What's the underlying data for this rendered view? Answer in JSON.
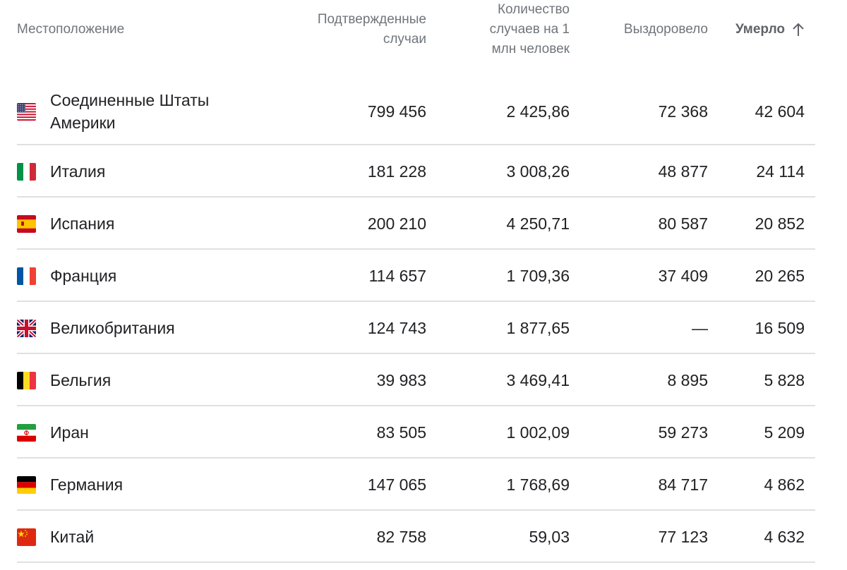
{
  "header": {
    "location": "Местоположение",
    "confirmed": [
      "Подтвержденные",
      "случаи"
    ],
    "per_million": [
      "Количество",
      "случаев на 1",
      "млн человек"
    ],
    "recovered": "Выздоровело",
    "deaths": "Умерло",
    "deaths_sort_icon": "arrow-up-icon"
  },
  "rows": [
    {
      "country": [
        "Соединенные Штаты",
        "Америки"
      ],
      "flag": "flag-usa-icon",
      "confirmed": "799 456",
      "per_million": "2 425,86",
      "recovered": "72 368",
      "deaths": "42 604"
    },
    {
      "country": [
        "Италия"
      ],
      "flag": "flag-italy-icon",
      "confirmed": "181 228",
      "per_million": "3 008,26",
      "recovered": "48 877",
      "deaths": "24 114"
    },
    {
      "country": [
        "Испания"
      ],
      "flag": "flag-spain-icon",
      "confirmed": "200 210",
      "per_million": "4 250,71",
      "recovered": "80 587",
      "deaths": "20 852"
    },
    {
      "country": [
        "Франция"
      ],
      "flag": "flag-france-icon",
      "confirmed": "114 657",
      "per_million": "1 709,36",
      "recovered": "37 409",
      "deaths": "20 265"
    },
    {
      "country": [
        "Великобритания"
      ],
      "flag": "flag-uk-icon",
      "confirmed": "124 743",
      "per_million": "1 877,65",
      "recovered": "—",
      "deaths": "16 509"
    },
    {
      "country": [
        "Бельгия"
      ],
      "flag": "flag-belgium-icon",
      "confirmed": "39 983",
      "per_million": "3 469,41",
      "recovered": "8 895",
      "deaths": "5 828"
    },
    {
      "country": [
        "Иран"
      ],
      "flag": "flag-iran-icon",
      "confirmed": "83 505",
      "per_million": "1 002,09",
      "recovered": "59 273",
      "deaths": "5 209"
    },
    {
      "country": [
        "Германия"
      ],
      "flag": "flag-germany-icon",
      "confirmed": "147 065",
      "per_million": "1 768,69",
      "recovered": "84 717",
      "deaths": "4 862"
    },
    {
      "country": [
        "Китай"
      ],
      "flag": "flag-china-icon",
      "confirmed": "82 758",
      "per_million": "59,03",
      "recovered": "77 123",
      "deaths": "4 632"
    }
  ]
}
